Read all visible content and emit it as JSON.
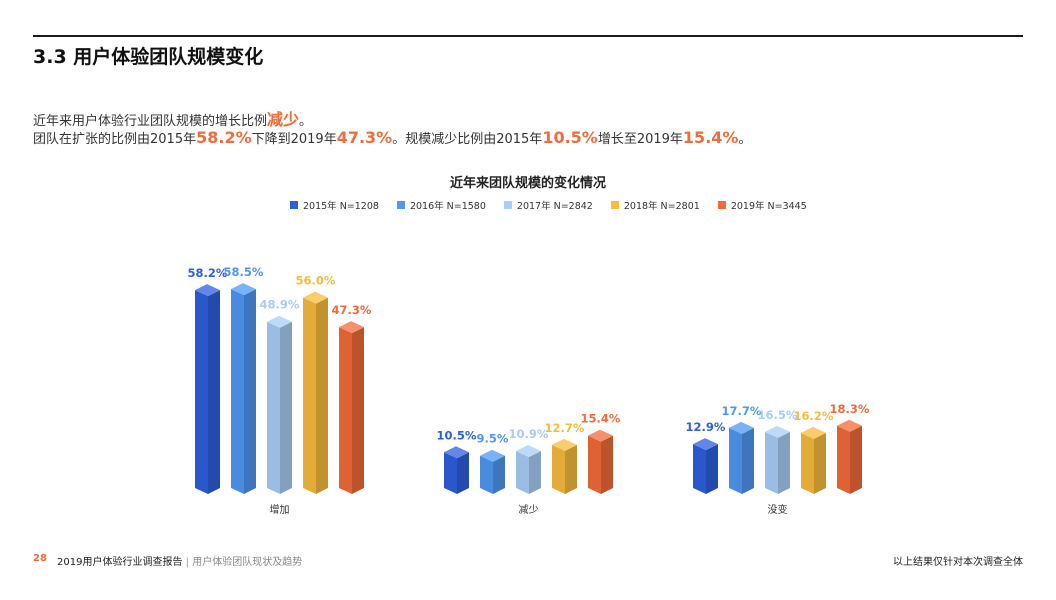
{
  "header": {
    "title": "3.3 用户体验团队规模变化"
  },
  "description": {
    "line1": {
      "prefix": "近年来用户体验行业团队规模的增长比例",
      "highlight": "减少",
      "suffix": "。"
    },
    "line2": {
      "t1": "团队在扩张的比例由2015年",
      "v1": "58.2%",
      "t2": "下降到2019年",
      "v2": "47.3%",
      "t3": "。规模减少比例由2015年",
      "v3": "10.5%",
      "t4": "增长至2019年",
      "v4": "15.4%",
      "t5": "。"
    }
  },
  "colors": {
    "accent": "#f26b3a",
    "series": [
      "#2e5fde",
      "#4f97f2",
      "#a9cdf7",
      "#f7bb3e",
      "#f26b3a"
    ]
  },
  "chart_data": {
    "type": "bar",
    "title": "近年来团队规模的变化情况",
    "legend_position": "top",
    "categories": [
      "增加",
      "减少",
      "没变"
    ],
    "series": [
      {
        "name": "2015年 N=1208",
        "values": [
          58.2,
          10.5,
          12.9
        ]
      },
      {
        "name": "2016年 N=1580",
        "values": [
          58.5,
          9.5,
          17.7
        ]
      },
      {
        "name": "2017年 N=2842",
        "values": [
          48.9,
          10.9,
          16.5
        ]
      },
      {
        "name": "2018年 N=2801",
        "values": [
          56.0,
          12.7,
          16.2
        ]
      },
      {
        "name": "2019年 N=3445",
        "values": [
          47.3,
          15.4,
          18.3
        ]
      }
    ],
    "ylim": [
      0,
      60
    ],
    "grid": false
  },
  "footer": {
    "page_number": "28",
    "report_title": "2019用户体验行业调查报告",
    "separator": "|",
    "report_subtitle": "用户体验团队现状及趋势",
    "disclaimer": "以上结果仅针对本次调查全体"
  }
}
